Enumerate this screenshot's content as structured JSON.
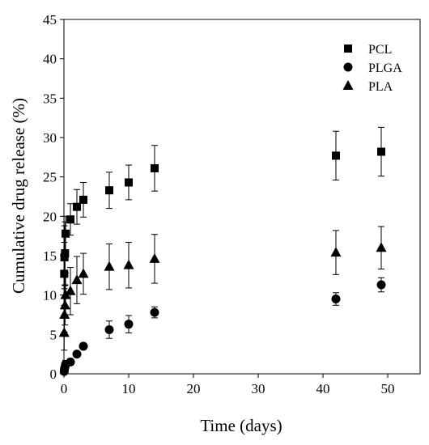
{
  "chart_data": {
    "type": "scatter",
    "xlabel": "Time (days)",
    "ylabel": "Cumulative drug release (%)",
    "xlim": [
      0,
      55
    ],
    "ylim": [
      0,
      45
    ],
    "x_ticks": [
      0,
      10,
      20,
      30,
      40,
      50
    ],
    "y_ticks": [
      0,
      5,
      10,
      15,
      20,
      25,
      30,
      35,
      40,
      45
    ],
    "grid": false,
    "legend_position": "top-right",
    "series": [
      {
        "name": "PCL",
        "marker": "square",
        "points": [
          {
            "x": 0.04,
            "y": 12.7,
            "err": 4.0
          },
          {
            "x": 0.08,
            "y": 14.8,
            "err": 4.0
          },
          {
            "x": 0.17,
            "y": 15.3,
            "err": 4.0
          },
          {
            "x": 0.25,
            "y": 17.8,
            "err": 2.2
          },
          {
            "x": 1,
            "y": 19.6,
            "err": 2.0
          },
          {
            "x": 2,
            "y": 21.2,
            "err": 2.2
          },
          {
            "x": 3,
            "y": 22.1,
            "err": 2.2
          },
          {
            "x": 7,
            "y": 23.3,
            "err": 2.3
          },
          {
            "x": 10,
            "y": 24.3,
            "err": 2.2
          },
          {
            "x": 14,
            "y": 26.1,
            "err": 2.9
          },
          {
            "x": 42,
            "y": 27.7,
            "err": 3.1
          },
          {
            "x": 49,
            "y": 28.2,
            "err": 3.1
          }
        ]
      },
      {
        "name": "PLGA",
        "marker": "circle",
        "points": [
          {
            "x": 0.04,
            "y": 0.3,
            "err": 0.2
          },
          {
            "x": 0.08,
            "y": 0.6,
            "err": 0.3
          },
          {
            "x": 0.17,
            "y": 0.9,
            "err": 0.4
          },
          {
            "x": 0.25,
            "y": 1.2,
            "err": 0.5
          },
          {
            "x": 1,
            "y": 1.5,
            "err": 0.4
          },
          {
            "x": 2,
            "y": 2.5,
            "err": 0.3
          },
          {
            "x": 3,
            "y": 3.5,
            "err": 0.3
          },
          {
            "x": 7,
            "y": 5.6,
            "err": 1.1
          },
          {
            "x": 10,
            "y": 6.3,
            "err": 1.1
          },
          {
            "x": 14,
            "y": 7.8,
            "err": 0.7
          },
          {
            "x": 42,
            "y": 9.5,
            "err": 0.8
          },
          {
            "x": 49,
            "y": 11.3,
            "err": 0.9
          }
        ]
      },
      {
        "name": "PLA",
        "marker": "triangle",
        "points": [
          {
            "x": 0.04,
            "y": 5.2,
            "err": 2.2
          },
          {
            "x": 0.08,
            "y": 7.5,
            "err": 2.2
          },
          {
            "x": 0.17,
            "y": 8.7,
            "err": 2.5
          },
          {
            "x": 0.25,
            "y": 10.0,
            "err": 2.8
          },
          {
            "x": 1,
            "y": 10.5,
            "err": 3.0
          },
          {
            "x": 2,
            "y": 11.9,
            "err": 3.0
          },
          {
            "x": 3,
            "y": 12.7,
            "err": 2.6
          },
          {
            "x": 7,
            "y": 13.6,
            "err": 2.9
          },
          {
            "x": 10,
            "y": 13.8,
            "err": 2.9
          },
          {
            "x": 14,
            "y": 14.6,
            "err": 3.1
          },
          {
            "x": 42,
            "y": 15.4,
            "err": 2.8
          },
          {
            "x": 49,
            "y": 16.0,
            "err": 2.7
          }
        ]
      }
    ]
  }
}
